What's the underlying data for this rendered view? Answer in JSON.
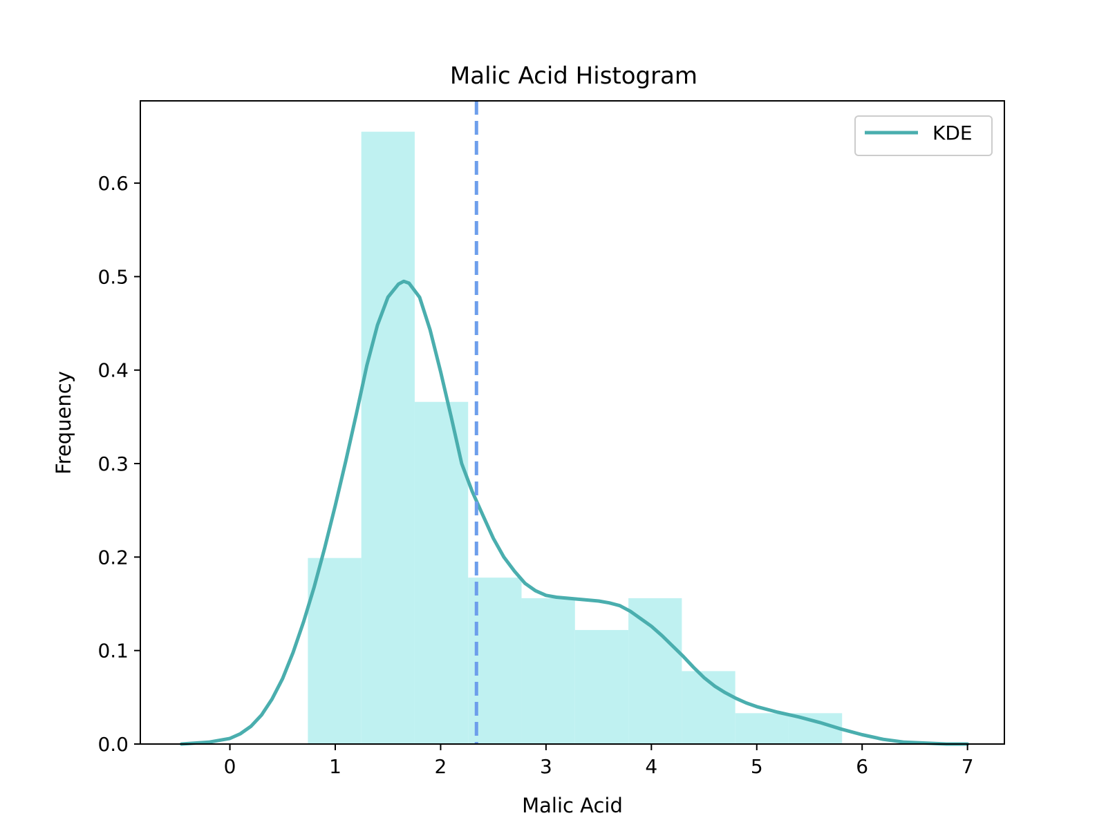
{
  "chart_data": {
    "type": "bar",
    "title": "Malic Acid Histogram",
    "xlabel": "Malic Acid",
    "ylabel": "Frequency",
    "xlim": [
      -0.85,
      7.35
    ],
    "ylim": [
      0,
      0.688
    ],
    "xticks": [
      0,
      1,
      2,
      3,
      4,
      5,
      6,
      7
    ],
    "yticks": [
      0.0,
      0.1,
      0.2,
      0.3,
      0.4,
      0.5,
      0.6
    ],
    "xtick_labels": [
      "0",
      "1",
      "2",
      "3",
      "4",
      "5",
      "6",
      "7"
    ],
    "ytick_labels": [
      "0.0",
      "0.1",
      "0.2",
      "0.3",
      "0.4",
      "0.5",
      "0.6"
    ],
    "histogram": {
      "bin_edges": [
        0.74,
        1.247,
        1.754,
        2.261,
        2.768,
        3.275,
        3.782,
        4.289,
        4.796,
        5.303,
        5.81
      ],
      "values": [
        0.199,
        0.655,
        0.366,
        0.178,
        0.156,
        0.122,
        0.156,
        0.078,
        0.033,
        0.033
      ],
      "color": "#bff1f1"
    },
    "kde": {
      "name": "KDE",
      "color": "#4aaeae",
      "x": [
        -0.46,
        -0.2,
        0.0,
        0.1,
        0.2,
        0.3,
        0.4,
        0.5,
        0.6,
        0.7,
        0.8,
        0.9,
        1.0,
        1.1,
        1.2,
        1.3,
        1.4,
        1.5,
        1.6,
        1.65,
        1.7,
        1.8,
        1.9,
        2.0,
        2.1,
        2.2,
        2.3,
        2.4,
        2.5,
        2.6,
        2.7,
        2.8,
        2.9,
        3.0,
        3.1,
        3.2,
        3.3,
        3.4,
        3.5,
        3.6,
        3.7,
        3.8,
        3.9,
        4.0,
        4.1,
        4.2,
        4.3,
        4.4,
        4.5,
        4.6,
        4.7,
        4.8,
        4.9,
        5.0,
        5.2,
        5.4,
        5.6,
        5.8,
        6.0,
        6.2,
        6.4,
        6.6,
        6.8,
        7.0
      ],
      "y": [
        0.0,
        0.002,
        0.006,
        0.011,
        0.019,
        0.031,
        0.048,
        0.07,
        0.098,
        0.131,
        0.168,
        0.21,
        0.255,
        0.303,
        0.353,
        0.405,
        0.448,
        0.478,
        0.492,
        0.495,
        0.493,
        0.478,
        0.443,
        0.398,
        0.35,
        0.3,
        0.27,
        0.245,
        0.22,
        0.2,
        0.185,
        0.172,
        0.164,
        0.159,
        0.157,
        0.156,
        0.155,
        0.154,
        0.153,
        0.151,
        0.148,
        0.142,
        0.134,
        0.126,
        0.116,
        0.105,
        0.094,
        0.082,
        0.071,
        0.062,
        0.055,
        0.049,
        0.044,
        0.04,
        0.034,
        0.029,
        0.023,
        0.016,
        0.01,
        0.005,
        0.002,
        0.001,
        0.0,
        0.0
      ]
    },
    "mean_line": {
      "x": 2.34,
      "color": "#6d9eeb",
      "style": "dashed"
    },
    "legend": {
      "placement": "top-right",
      "entries": [
        "KDE"
      ]
    },
    "grid": false
  }
}
